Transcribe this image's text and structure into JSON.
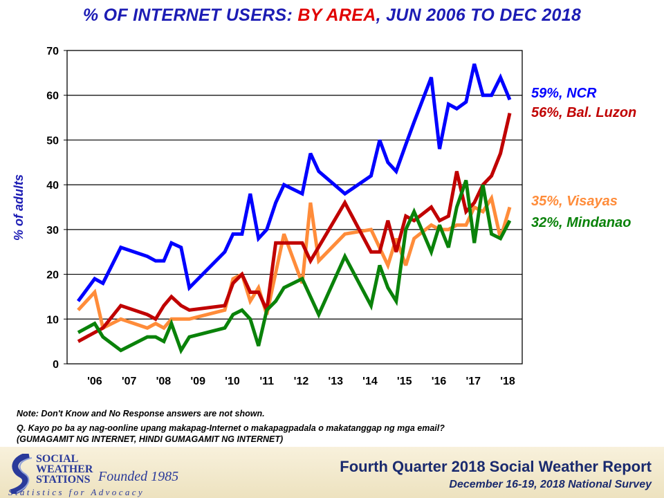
{
  "title": {
    "part1": "% OF INTERNET USERS: ",
    "highlight": "BY AREA",
    "part2": ", JUN 2006 TO DEC 2018"
  },
  "chart_data": {
    "type": "line",
    "title": "% OF INTERNET USERS: BY AREA, JUN 2006 TO DEC 2018",
    "xlabel": "",
    "ylabel": "% of adults",
    "ylim": [
      0,
      70
    ],
    "yticks": [
      "0",
      "10",
      "20",
      "30",
      "40",
      "50",
      "60",
      "70"
    ],
    "xticks": [
      "'06",
      "'07",
      "'08",
      "'09",
      "'10",
      "'11",
      "'12",
      "'13",
      "'14",
      "'15",
      "'16",
      "'17",
      "'18"
    ],
    "grid": "horizontal",
    "legend": "right, end-of-line labels",
    "series": [
      {
        "name": "NCR",
        "end_label": "59%, NCR",
        "color": "#0000ff",
        "points": [
          [
            2006.42,
            14
          ],
          [
            2006.9,
            19
          ],
          [
            2007.14,
            18
          ],
          [
            2007.66,
            26
          ],
          [
            2008.43,
            24
          ],
          [
            2008.67,
            23
          ],
          [
            2008.91,
            23
          ],
          [
            2009.13,
            27
          ],
          [
            2009.41,
            26
          ],
          [
            2009.65,
            17
          ],
          [
            2010.68,
            25
          ],
          [
            2010.92,
            29
          ],
          [
            2011.18,
            29
          ],
          [
            2011.42,
            38
          ],
          [
            2011.66,
            28
          ],
          [
            2011.9,
            30
          ],
          [
            2012.16,
            36
          ],
          [
            2012.4,
            40
          ],
          [
            2012.93,
            38
          ],
          [
            2013.17,
            47
          ],
          [
            2013.41,
            43
          ],
          [
            2014.17,
            38
          ],
          [
            2014.93,
            42
          ],
          [
            2015.18,
            50
          ],
          [
            2015.42,
            45
          ],
          [
            2015.66,
            43
          ],
          [
            2015.94,
            49
          ],
          [
            2016.18,
            54
          ],
          [
            2016.68,
            64
          ],
          [
            2016.92,
            48
          ],
          [
            2017.18,
            58
          ],
          [
            2017.42,
            57
          ],
          [
            2017.69,
            58.5
          ],
          [
            2017.93,
            67
          ],
          [
            2018.18,
            60
          ],
          [
            2018.43,
            60
          ],
          [
            2018.69,
            64
          ],
          [
            2018.96,
            59
          ]
        ]
      },
      {
        "name": "Bal. Luzon",
        "end_label": "56%, Bal. Luzon",
        "color": "#c00000",
        "points": [
          [
            2006.42,
            5
          ],
          [
            2007.14,
            8
          ],
          [
            2007.66,
            13
          ],
          [
            2008.43,
            11
          ],
          [
            2008.67,
            10
          ],
          [
            2008.91,
            13
          ],
          [
            2009.13,
            15
          ],
          [
            2009.41,
            13
          ],
          [
            2009.65,
            12
          ],
          [
            2010.68,
            13
          ],
          [
            2010.92,
            18
          ],
          [
            2011.18,
            20
          ],
          [
            2011.42,
            16
          ],
          [
            2011.66,
            16
          ],
          [
            2011.9,
            12
          ],
          [
            2012.16,
            27
          ],
          [
            2012.4,
            27
          ],
          [
            2012.93,
            27
          ],
          [
            2013.17,
            23
          ],
          [
            2014.17,
            36
          ],
          [
            2014.93,
            25
          ],
          [
            2015.18,
            25
          ],
          [
            2015.42,
            32
          ],
          [
            2015.66,
            25
          ],
          [
            2015.94,
            33
          ],
          [
            2016.18,
            32
          ],
          [
            2016.68,
            35
          ],
          [
            2016.92,
            32
          ],
          [
            2017.18,
            33
          ],
          [
            2017.42,
            43
          ],
          [
            2017.69,
            34
          ],
          [
            2017.93,
            36
          ],
          [
            2018.18,
            40
          ],
          [
            2018.43,
            42
          ],
          [
            2018.69,
            47
          ],
          [
            2018.96,
            56
          ]
        ]
      },
      {
        "name": "Visayas",
        "end_label": "35%, Visayas",
        "color": "#ff8c3a",
        "points": [
          [
            2006.42,
            12
          ],
          [
            2006.9,
            16
          ],
          [
            2007.14,
            8
          ],
          [
            2007.66,
            10
          ],
          [
            2008.43,
            8
          ],
          [
            2008.67,
            9
          ],
          [
            2008.91,
            8
          ],
          [
            2009.13,
            10
          ],
          [
            2009.65,
            10
          ],
          [
            2010.68,
            12
          ],
          [
            2010.92,
            19
          ],
          [
            2011.18,
            20
          ],
          [
            2011.42,
            14
          ],
          [
            2011.66,
            17
          ],
          [
            2011.9,
            11
          ],
          [
            2012.4,
            29
          ],
          [
            2012.93,
            18
          ],
          [
            2013.17,
            36
          ],
          [
            2013.41,
            23
          ],
          [
            2014.17,
            29
          ],
          [
            2014.93,
            30
          ],
          [
            2015.42,
            22
          ],
          [
            2015.66,
            28
          ],
          [
            2015.94,
            22
          ],
          [
            2016.18,
            28
          ],
          [
            2016.68,
            31
          ],
          [
            2016.92,
            30
          ],
          [
            2017.18,
            30
          ],
          [
            2017.42,
            31
          ],
          [
            2017.69,
            31
          ],
          [
            2017.93,
            35
          ],
          [
            2018.18,
            34
          ],
          [
            2018.43,
            37
          ],
          [
            2018.69,
            28
          ],
          [
            2018.96,
            35
          ]
        ]
      },
      {
        "name": "Mindanao",
        "end_label": "32%, Mindanao",
        "color": "#0a820a",
        "points": [
          [
            2006.42,
            7
          ],
          [
            2006.9,
            9
          ],
          [
            2007.14,
            6
          ],
          [
            2007.66,
            3
          ],
          [
            2008.43,
            6
          ],
          [
            2008.67,
            6
          ],
          [
            2008.91,
            5
          ],
          [
            2009.13,
            9
          ],
          [
            2009.41,
            3
          ],
          [
            2009.65,
            6
          ],
          [
            2010.68,
            8
          ],
          [
            2010.92,
            11
          ],
          [
            2011.18,
            12
          ],
          [
            2011.42,
            10
          ],
          [
            2011.66,
            4
          ],
          [
            2011.9,
            12
          ],
          [
            2012.16,
            14
          ],
          [
            2012.4,
            17
          ],
          [
            2012.93,
            19
          ],
          [
            2013.41,
            11
          ],
          [
            2014.17,
            24
          ],
          [
            2014.93,
            13
          ],
          [
            2015.18,
            22
          ],
          [
            2015.42,
            17
          ],
          [
            2015.66,
            14
          ],
          [
            2015.94,
            30
          ],
          [
            2016.18,
            34
          ],
          [
            2016.68,
            25
          ],
          [
            2016.92,
            31
          ],
          [
            2017.18,
            26
          ],
          [
            2017.42,
            35
          ],
          [
            2017.69,
            41
          ],
          [
            2017.93,
            27
          ],
          [
            2018.18,
            40
          ],
          [
            2018.43,
            29
          ],
          [
            2018.69,
            28
          ],
          [
            2018.96,
            32
          ]
        ]
      }
    ]
  },
  "notes": {
    "note": "Note: Don't Know and No Response answers are not shown.",
    "question": "Q. Kayo po ba ay nag-oonline upang makapag-Internet o makapagpadala o makatanggap ng mga email?",
    "options": "(GUMAGAMIT NG INTERNET, HINDI GUMAGAMIT NG INTERNET)"
  },
  "footer": {
    "logo_lines": [
      "SOCIAL",
      "WEATHER",
      "STATIONS"
    ],
    "founded": "Founded 1985",
    "tagline": "Statistics for Advocacy",
    "report": "Fourth Quarter  2018 Social Weather Report",
    "survey": "December 16-19, 2018 National Survey"
  }
}
